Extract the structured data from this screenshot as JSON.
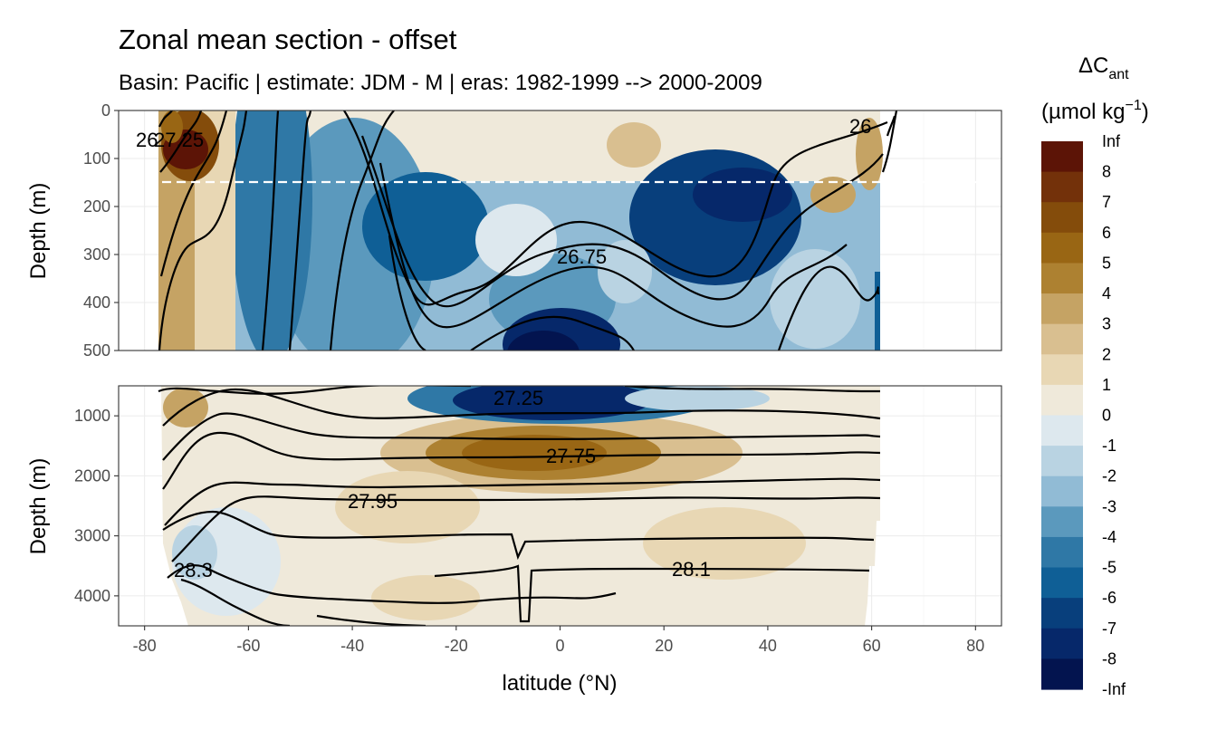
{
  "title": "Zonal mean section - offset",
  "subtitle": "Basin: Pacific | estimate: JDM - M | eras: 1982-1999 --> 2000-2009",
  "chart_data": {
    "type": "contour_section",
    "xlabel": "latitude (°N)",
    "ylabel": "Depth (m)",
    "x_range": [
      -85,
      85
    ],
    "x_ticks": [
      "-80",
      "-60",
      "-40",
      "-20",
      "0",
      "20",
      "40",
      "60",
      "80"
    ],
    "x_tick_values": [
      -80,
      -60,
      -40,
      -20,
      0,
      20,
      40,
      60,
      80
    ],
    "data_lat_range": [
      -77,
      61
    ],
    "panels": [
      {
        "name": "upper",
        "depth_range": [
          0,
          500
        ],
        "y_ticks": [
          "0",
          "100",
          "200",
          "300",
          "400",
          "500"
        ],
        "y_tick_values": [
          0,
          100,
          200,
          300,
          400,
          500
        ],
        "reference_line_depth": 150,
        "contour_labels": [
          "26",
          "27.25",
          "26.75",
          "26"
        ]
      },
      {
        "name": "lower",
        "depth_range": [
          500,
          4500
        ],
        "y_ticks": [
          "1000",
          "2000",
          "3000",
          "4000"
        ],
        "y_tick_values": [
          1000,
          2000,
          3000,
          4000
        ],
        "contour_labels": [
          "27.25",
          "27.75",
          "27.95",
          "28.3",
          "28.1"
        ]
      }
    ],
    "legend": {
      "title_main": "ΔC",
      "title_sub": "ant",
      "unit_main": "(µmol kg",
      "unit_sup": "−1",
      "unit_close": ")",
      "labels": [
        "Inf",
        "8",
        "7",
        "6",
        "5",
        "4",
        "3",
        "2",
        "1",
        "0",
        "-1",
        "-2",
        "-3",
        "-4",
        "-5",
        "-6",
        "-7",
        "-8",
        "-Inf"
      ],
      "colors": [
        "#5c1406",
        "#73310a",
        "#844c0b",
        "#996614",
        "#ad8131",
        "#c5a364",
        "#d9bf90",
        "#e8d7b4",
        "#efe9da",
        "#dde8ee",
        "#b9d3e2",
        "#91bbd5",
        "#5b99bd",
        "#2f78a6",
        "#0f5f96",
        "#083f7c",
        "#06286a",
        "#03144f"
      ]
    }
  }
}
